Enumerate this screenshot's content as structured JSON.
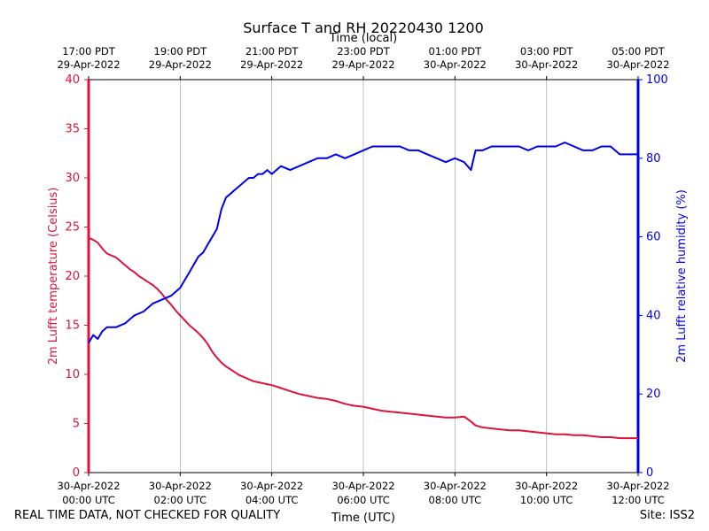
{
  "chart_data": {
    "type": "line",
    "title": "Surface T and RH 20220430 1200",
    "top_axis_label": "Time (local)",
    "xlabel": "Time (UTC)",
    "ylabel_left": "2m Lufft temperature (Celsius)",
    "ylabel_right": "2m Lufft relative humidity (%)",
    "xlim_hours": [
      0,
      12
    ],
    "ylim_left": [
      0,
      40
    ],
    "ylim_right": [
      0,
      100
    ],
    "yticks_left": [
      "0",
      "5",
      "10",
      "15",
      "20",
      "25",
      "30",
      "35",
      "40"
    ],
    "yticks_right": [
      "0",
      "20",
      "40",
      "60",
      "80",
      "100"
    ],
    "bottom_ticks": [
      {
        "hour": 0,
        "line1": "30-Apr-2022",
        "line2": "00:00 UTC"
      },
      {
        "hour": 2,
        "line1": "30-Apr-2022",
        "line2": "02:00 UTC"
      },
      {
        "hour": 4,
        "line1": "30-Apr-2022",
        "line2": "04:00 UTC"
      },
      {
        "hour": 6,
        "line1": "30-Apr-2022",
        "line2": "06:00 UTC"
      },
      {
        "hour": 8,
        "line1": "30-Apr-2022",
        "line2": "08:00 UTC"
      },
      {
        "hour": 10,
        "line1": "30-Apr-2022",
        "line2": "10:00 UTC"
      },
      {
        "hour": 12,
        "line1": "30-Apr-2022",
        "line2": "12:00 UTC"
      }
    ],
    "top_ticks": [
      {
        "hour": 0,
        "line1": "17:00 PDT",
        "line2": "29-Apr-2022"
      },
      {
        "hour": 2,
        "line1": "19:00 PDT",
        "line2": "29-Apr-2022"
      },
      {
        "hour": 4,
        "line1": "21:00 PDT",
        "line2": "29-Apr-2022"
      },
      {
        "hour": 6,
        "line1": "23:00 PDT",
        "line2": "29-Apr-2022"
      },
      {
        "hour": 8,
        "line1": "01:00 PDT",
        "line2": "30-Apr-2022"
      },
      {
        "hour": 10,
        "line1": "03:00 PDT",
        "line2": "30-Apr-2022"
      },
      {
        "hour": 12,
        "line1": "05:00 PDT",
        "line2": "30-Apr-2022"
      }
    ],
    "grid": "vertical",
    "series": [
      {
        "name": "2m Lufft temperature",
        "axis": "left",
        "color": "#dc143c",
        "x": [
          0,
          0.1,
          0.2,
          0.3,
          0.4,
          0.5,
          0.6,
          0.7,
          0.8,
          0.9,
          1.0,
          1.1,
          1.2,
          1.3,
          1.4,
          1.5,
          1.6,
          1.7,
          1.8,
          1.9,
          2.0,
          2.1,
          2.2,
          2.3,
          2.4,
          2.5,
          2.6,
          2.7,
          2.8,
          2.9,
          3.0,
          3.1,
          3.2,
          3.3,
          3.4,
          3.5,
          3.6,
          3.7,
          3.8,
          3.9,
          4.0,
          4.2,
          4.4,
          4.6,
          4.8,
          5.0,
          5.2,
          5.4,
          5.6,
          5.8,
          6.0,
          6.2,
          6.4,
          6.6,
          6.8,
          7.0,
          7.2,
          7.4,
          7.6,
          7.8,
          8.0,
          8.2,
          8.35,
          8.45,
          8.6,
          8.8,
          9.0,
          9.2,
          9.4,
          9.6,
          9.8,
          10.0,
          10.2,
          10.4,
          10.6,
          10.8,
          11.0,
          11.2,
          11.4,
          11.6,
          11.8,
          12.0
        ],
        "values": [
          23.9,
          23.7,
          23.4,
          22.8,
          22.3,
          22.1,
          21.9,
          21.5,
          21.1,
          20.7,
          20.4,
          20.0,
          19.7,
          19.4,
          19.1,
          18.7,
          18.2,
          17.6,
          17.1,
          16.5,
          16.0,
          15.5,
          15.0,
          14.6,
          14.2,
          13.7,
          13.1,
          12.3,
          11.7,
          11.2,
          10.8,
          10.5,
          10.2,
          9.9,
          9.7,
          9.5,
          9.3,
          9.2,
          9.1,
          9.0,
          8.9,
          8.6,
          8.3,
          8.0,
          7.8,
          7.6,
          7.5,
          7.3,
          7.0,
          6.8,
          6.7,
          6.5,
          6.3,
          6.2,
          6.1,
          6.0,
          5.9,
          5.8,
          5.7,
          5.6,
          5.6,
          5.7,
          5.2,
          4.8,
          4.6,
          4.5,
          4.4,
          4.3,
          4.3,
          4.2,
          4.1,
          4.0,
          3.9,
          3.9,
          3.8,
          3.8,
          3.7,
          3.6,
          3.6,
          3.5,
          3.5,
          3.5
        ]
      },
      {
        "name": "2m Lufft relative humidity",
        "axis": "right",
        "color": "#0000ee",
        "x": [
          0,
          0.1,
          0.2,
          0.3,
          0.4,
          0.6,
          0.8,
          1.0,
          1.2,
          1.4,
          1.6,
          1.8,
          2.0,
          2.1,
          2.2,
          2.3,
          2.4,
          2.5,
          2.6,
          2.7,
          2.8,
          2.9,
          3.0,
          3.1,
          3.2,
          3.3,
          3.4,
          3.5,
          3.6,
          3.7,
          3.8,
          3.9,
          4.0,
          4.2,
          4.4,
          4.6,
          4.8,
          5.0,
          5.2,
          5.4,
          5.6,
          5.8,
          6.0,
          6.2,
          6.4,
          6.6,
          6.8,
          7.0,
          7.2,
          7.4,
          7.6,
          7.8,
          8.0,
          8.2,
          8.35,
          8.45,
          8.6,
          8.8,
          9.0,
          9.2,
          9.4,
          9.6,
          9.8,
          10.0,
          10.2,
          10.4,
          10.6,
          10.8,
          11.0,
          11.2,
          11.4,
          11.6,
          11.8,
          12.0
        ],
        "values": [
          33,
          35,
          34,
          36,
          37,
          37,
          38,
          40,
          41,
          43,
          44,
          45,
          47,
          49,
          51,
          53,
          55,
          56,
          58,
          60,
          62,
          67,
          70,
          71,
          72,
          73,
          74,
          75,
          75,
          76,
          76,
          77,
          76,
          78,
          77,
          78,
          79,
          80,
          80,
          81,
          80,
          81,
          82,
          83,
          83,
          83,
          83,
          82,
          82,
          81,
          80,
          79,
          80,
          79,
          77,
          82,
          82,
          83,
          83,
          83,
          83,
          82,
          83,
          83,
          83,
          84,
          83,
          82,
          82,
          83,
          83,
          81,
          81,
          81
        ]
      }
    ]
  },
  "footer": {
    "left_note": "REAL TIME DATA, NOT CHECKED FOR QUALITY",
    "site": "Site: ISS2"
  }
}
